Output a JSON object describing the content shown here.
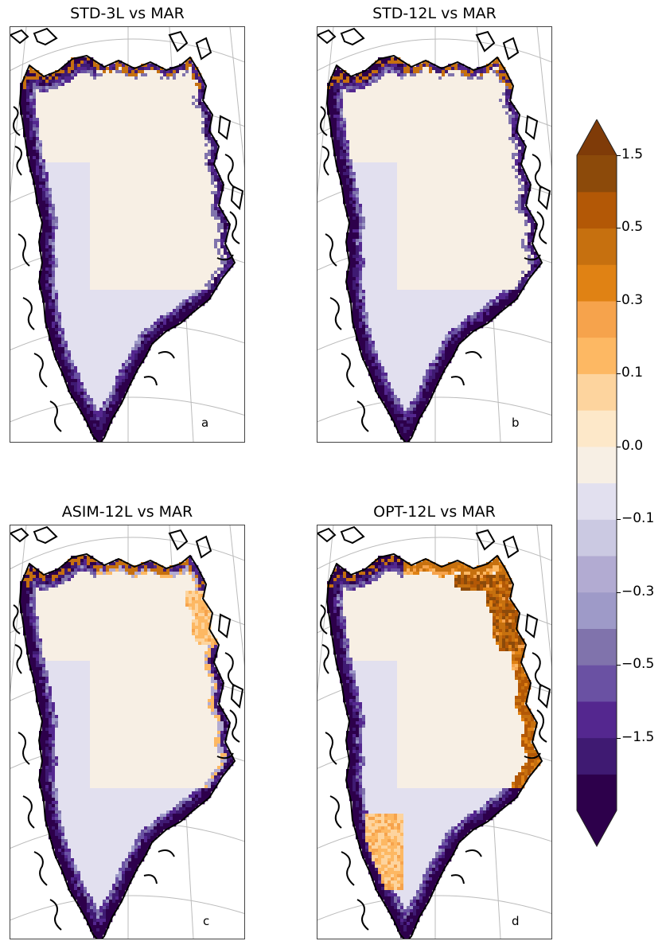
{
  "panels": [
    {
      "title": "STD-3L vs MAR",
      "letter": "a",
      "pattern": "std3"
    },
    {
      "title": "STD-12L vs MAR",
      "letter": "b",
      "pattern": "std12"
    },
    {
      "title": "ASIM-12L vs MAR",
      "letter": "c",
      "pattern": "asim"
    },
    {
      "title": "OPT-12L vs MAR",
      "letter": "d",
      "pattern": "opt"
    }
  ],
  "colorbar": {
    "ticks": [
      "1.5",
      "0.5",
      "0.3",
      "0.1",
      "0.0",
      "−0.1",
      "−0.3",
      "−0.5",
      "−1.5"
    ],
    "levels": [
      -1.5,
      -1.0,
      -0.7,
      -0.5,
      -0.4,
      -0.3,
      -0.2,
      -0.1,
      -0.05,
      0.0,
      0.05,
      0.1,
      0.2,
      0.3,
      0.4,
      0.5,
      0.7,
      1.0,
      1.5
    ],
    "colors": [
      "#2d004b",
      "#3f1a72",
      "#54278f",
      "#6a51a3",
      "#8073ac",
      "#9e9ac8",
      "#b2abd2",
      "#cbc9e2",
      "#e2e0ef",
      "#f7efe4",
      "#fde8c9",
      "#fdd49e",
      "#fdb863",
      "#f6a34c",
      "#e08214",
      "#c6700f",
      "#b35806",
      "#8c4a0a"
    ],
    "under_color": "#2d004b",
    "over_color": "#7f3b08"
  }
}
